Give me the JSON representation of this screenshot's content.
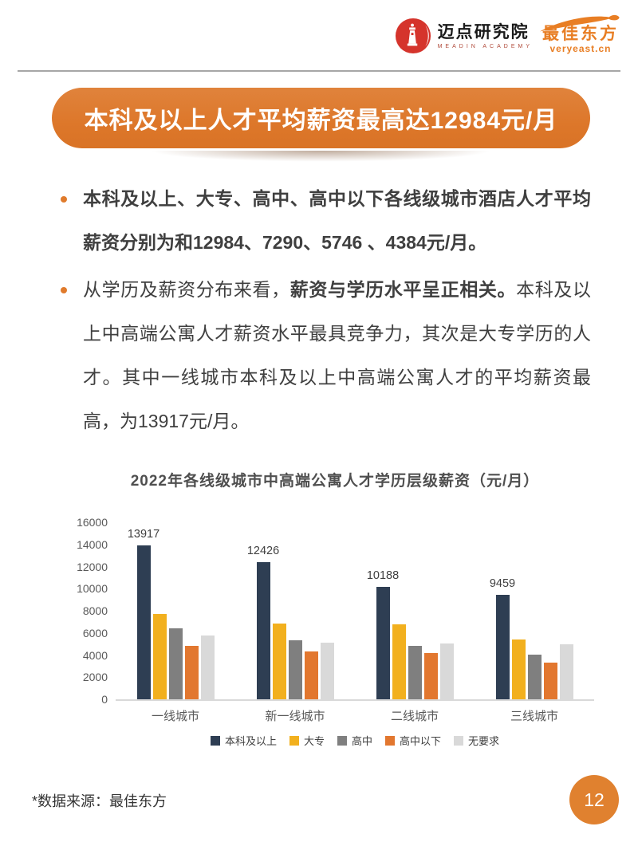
{
  "header": {
    "meadin_logo": {
      "title": "迈点研究院",
      "subtitle": "MEADIN ACADEMY"
    },
    "veryeast_logo": {
      "title": "最佳东方",
      "subtitle": "veryeast.cn"
    }
  },
  "banner": {
    "title": "本科及以上人才平均薪资最高达12984元/月",
    "color": "#DD772A"
  },
  "bullets": {
    "items": [
      {
        "style": "bold",
        "text": "本科及以上、大专、高中、高中以下各线级城市酒店人才平均薪资分别为和12984、7290、5746 、4384元/月。"
      },
      {
        "segments": [
          {
            "bold": false,
            "text": "从学历及薪资分布来看，"
          },
          {
            "bold": true,
            "text": "薪资与学历水平呈正相关。"
          },
          {
            "bold": false,
            "text": "本科及以上中高端公寓人才薪资水平最具竞争力，其次是大专学历的人才。其中一线城市本科及以上中高端公寓人才的平均薪资最高，为13917元/月。"
          }
        ]
      }
    ]
  },
  "chart_data": {
    "type": "bar",
    "title": "2022年各线级城市中高端公寓人才学历层级薪资（元/月）",
    "categories": [
      "一线城市",
      "新一线城市",
      "二线城市",
      "三线城市"
    ],
    "series": [
      {
        "name": "本科及以上",
        "color": "#2E3E53",
        "values": [
          13917,
          12426,
          10188,
          9459
        ],
        "show_labels": true
      },
      {
        "name": "大专",
        "color": "#F2B01E",
        "values": [
          7700,
          6850,
          6750,
          5400
        ]
      },
      {
        "name": "高中",
        "color": "#7F7F7F",
        "values": [
          6400,
          5350,
          4800,
          4050
        ]
      },
      {
        "name": "高中以下",
        "color": "#E2772F",
        "values": [
          4800,
          4300,
          4200,
          3350
        ]
      },
      {
        "name": "无要求",
        "color": "#D9D9D9",
        "values": [
          5750,
          5100,
          5050,
          5000
        ]
      }
    ],
    "ylim": [
      0,
      16000
    ],
    "ytick_step": 2000,
    "yticks": [
      "16000",
      "14000",
      "12000",
      "10000",
      "8000",
      "6000",
      "4000",
      "2000",
      "0"
    ],
    "grid": false,
    "legend_position": "bottom",
    "xlabel": "",
    "ylabel": ""
  },
  "footer": {
    "source": "*数据来源：最佳东方",
    "page_number": "12"
  },
  "colors": {
    "accent_orange": "#DD772A",
    "page_circle": "#E0812F",
    "bullet_dot": "#E07B2C",
    "divider": "#A6A6A6",
    "body_text": "#3F3F3F",
    "axis_text": "#595959"
  }
}
